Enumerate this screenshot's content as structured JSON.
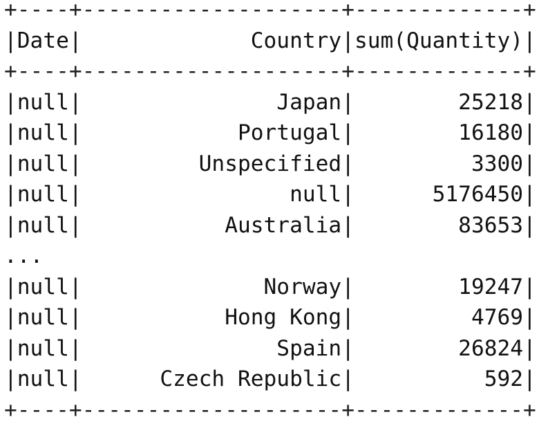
{
  "lines": [
    "+----+--------------------+-------------+",
    "|Date|             Country|sum(Quantity)|",
    "+----+--------------------+-------------+",
    "|null|               Japan|        25218|",
    "|null|            Portugal|        16180|",
    "|null|         Unspecified|         3300|",
    "|null|                null|      5176450|",
    "|null|           Australia|        83653|",
    "...",
    "|null|              Norway|        19247|",
    "|null|           Hong Kong|         4769|",
    "|null|               Spain|        26824|",
    "|null|      Czech Republic|          592|",
    "+----+--------------------+-------------+"
  ]
}
